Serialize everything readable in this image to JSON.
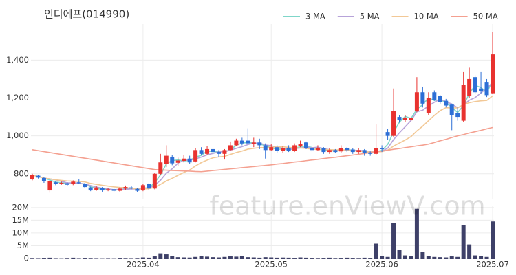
{
  "watermark": "feature.enViewV.com",
  "chart_data": [
    {
      "type": "candlestick",
      "title": "인디에프(014990)",
      "categories": [
        null,
        null,
        null,
        null,
        null,
        null,
        null,
        null,
        null,
        null,
        null,
        null,
        null,
        null,
        null,
        null,
        null,
        null,
        null,
        "2025.04",
        null,
        null,
        null,
        null,
        null,
        null,
        null,
        null,
        null,
        null,
        null,
        null,
        null,
        null,
        null,
        null,
        null,
        null,
        null,
        null,
        null,
        "2025.05",
        null,
        null,
        null,
        null,
        null,
        null,
        null,
        null,
        null,
        null,
        null,
        null,
        null,
        null,
        null,
        null,
        null,
        null,
        "2025.06",
        null,
        null,
        null,
        null,
        null,
        null,
        null,
        null,
        null,
        null,
        null,
        null,
        null,
        null,
        null,
        null,
        null,
        null,
        "2025.07"
      ],
      "open": [
        770,
        790,
        778,
        712,
        755,
        745,
        750,
        745,
        755,
        748,
        728,
        715,
        725,
        712,
        718,
        710,
        722,
        728,
        720,
        712,
        745,
        722,
        800,
        850,
        890,
        858,
        868,
        880,
        865,
        925,
        905,
        930,
        915,
        905,
        925,
        950,
        975,
        975,
        958,
        965,
        950,
        925,
        940,
        920,
        935,
        920,
        948,
        965,
        935,
        925,
        935,
        915,
        925,
        918,
        935,
        928,
        915,
        925,
        912,
        905,
        935,
        1020,
        1000,
        1100,
        1085,
        1082,
        1130,
        1230,
        1120,
        1230,
        1210,
        1185,
        1165,
        1120,
        1080,
        1210,
        1310,
        1250,
        1285,
        1225
      ],
      "high": [
        800,
        795,
        782,
        765,
        760,
        758,
        755,
        765,
        770,
        752,
        732,
        735,
        730,
        725,
        722,
        728,
        738,
        735,
        725,
        748,
        750,
        805,
        905,
        950,
        900,
        885,
        900,
        895,
        935,
        940,
        945,
        940,
        925,
        930,
        970,
        985,
        990,
        1040,
        990,
        985,
        960,
        955,
        950,
        945,
        950,
        960,
        975,
        970,
        945,
        950,
        940,
        935,
        930,
        950,
        940,
        935,
        935,
        930,
        918,
        1060,
        950,
        1035,
        1250,
        1110,
        1110,
        1100,
        1310,
        1260,
        1230,
        1240,
        1215,
        1195,
        1170,
        1150,
        1340,
        1360,
        1320,
        1340,
        1300,
        1550
      ],
      "low": [
        765,
        775,
        752,
        700,
        740,
        742,
        738,
        740,
        745,
        725,
        708,
        710,
        705,
        708,
        705,
        706,
        715,
        718,
        705,
        708,
        715,
        718,
        795,
        835,
        845,
        840,
        860,
        850,
        860,
        900,
        900,
        895,
        890,
        875,
        920,
        945,
        950,
        955,
        940,
        930,
        880,
        920,
        910,
        910,
        915,
        915,
        940,
        930,
        915,
        920,
        905,
        905,
        910,
        912,
        915,
        905,
        905,
        895,
        895,
        900,
        915,
        980,
        995,
        1070,
        1075,
        1075,
        1125,
        1150,
        1110,
        1185,
        1170,
        1150,
        1030,
        1080,
        1075,
        1200,
        1220,
        1225,
        1205,
        1220
      ],
      "close": [
        792,
        780,
        760,
        760,
        748,
        752,
        742,
        758,
        750,
        730,
        712,
        728,
        712,
        718,
        710,
        722,
        730,
        722,
        710,
        740,
        722,
        800,
        860,
        895,
        855,
        870,
        880,
        860,
        925,
        905,
        930,
        915,
        905,
        925,
        950,
        975,
        960,
        960,
        965,
        950,
        925,
        940,
        920,
        935,
        920,
        950,
        955,
        935,
        925,
        935,
        915,
        925,
        915,
        935,
        925,
        915,
        925,
        910,
        905,
        935,
        930,
        1000,
        1130,
        1085,
        1095,
        1095,
        1230,
        1170,
        1200,
        1190,
        1180,
        1160,
        1110,
        1100,
        1270,
        1300,
        1230,
        1235,
        1215,
        1430
      ],
      "up_color": "#e8322f",
      "down_color": "#2d6fd6",
      "series": [
        {
          "name": "3 MA",
          "color": "#7fd6c9",
          "values": [
            792,
            786,
            777,
            767,
            756,
            753,
            747,
            751,
            750,
            746,
            731,
            723,
            717,
            719,
            713,
            717,
            721,
            725,
            721,
            724,
            724,
            754,
            794,
            852,
            870,
            873,
            868,
            870,
            888,
            897,
            920,
            917,
            917,
            915,
            927,
            950,
            962,
            965,
            962,
            958,
            947,
            938,
            928,
            932,
            925,
            935,
            942,
            947,
            938,
            932,
            925,
            925,
            918,
            925,
            925,
            925,
            922,
            917,
            913,
            917,
            923,
            955,
            1020,
            1072,
            1103,
            1092,
            1140,
            1165,
            1200,
            1187,
            1190,
            1177,
            1150,
            1123,
            1160,
            1223,
            1267,
            1255,
            1227,
            1293
          ]
        },
        {
          "name": "5 MA",
          "color": "#b7a3d9",
          "values": [
            792,
            786,
            777,
            773,
            768,
            760,
            752,
            752,
            750,
            746,
            738,
            730,
            724,
            720,
            716,
            718,
            718,
            720,
            719,
            725,
            725,
            739,
            766,
            803,
            826,
            856,
            872,
            872,
            878,
            888,
            900,
            907,
            916,
            916,
            925,
            934,
            943,
            954,
            962,
            962,
            952,
            948,
            940,
            934,
            928,
            933,
            936,
            941,
            937,
            940,
            933,
            927,
            923,
            925,
            923,
            923,
            923,
            922,
            916,
            918,
            919,
            935,
            980,
            1016,
            1048,
            1081,
            1127,
            1135,
            1158,
            1177,
            1194,
            1180,
            1168,
            1148,
            1164,
            1188,
            1202,
            1227,
            1250,
            1282
          ]
        },
        {
          "name": "10 MA",
          "color": "#f2c896",
          "values": [
            792,
            786,
            777,
            773,
            768,
            765,
            762,
            761,
            760,
            757,
            749,
            744,
            739,
            735,
            731,
            728,
            727,
            723,
            719,
            720,
            721,
            729,
            744,
            762,
            776,
            792,
            807,
            820,
            841,
            859,
            872,
            884,
            889,
            892,
            902,
            912,
            920,
            930,
            934,
            938,
            938,
            940,
            941,
            942,
            939,
            937,
            936,
            934,
            930,
            928,
            928,
            927,
            926,
            926,
            926,
            922,
            919,
            917,
            915,
            915,
            917,
            925,
            946,
            962,
            978,
            996,
            1026,
            1051,
            1080,
            1108,
            1133,
            1149,
            1147,
            1148,
            1165,
            1175,
            1181,
            1185,
            1187,
            1211
          ]
        },
        {
          "name": "50 MA",
          "color": "#f4a090",
          "values": [
            927,
            922,
            917,
            912,
            907,
            902,
            897,
            892,
            887,
            882,
            877,
            872,
            867,
            862,
            857,
            852,
            847,
            842,
            837,
            832,
            827,
            822,
            820,
            819,
            817,
            816,
            815,
            814,
            812,
            811,
            814,
            817,
            820,
            823,
            826,
            829,
            832,
            835,
            838,
            841,
            844,
            847,
            851,
            854,
            858,
            862,
            865,
            869,
            873,
            876,
            880,
            884,
            887,
            891,
            895,
            899,
            903,
            907,
            912,
            916,
            920,
            924,
            929,
            933,
            938,
            942,
            947,
            951,
            956,
            965,
            974,
            982,
            991,
            1000,
            1007,
            1015,
            1022,
            1029,
            1037,
            1044
          ]
        }
      ],
      "ylim": [
        665,
        1590
      ],
      "yticks": [
        800,
        {
          "value": 1000,
          "label": "1,000"
        },
        {
          "value": 1200,
          "label": "1,200"
        },
        {
          "value": 1400,
          "label": "1,400"
        }
      ],
      "grid": true,
      "legend": "top-right"
    },
    {
      "type": "bar",
      "color": "#3e4068",
      "values": [
        200000,
        150000,
        250000,
        300000,
        150000,
        100000,
        200000,
        300000,
        150000,
        250000,
        200000,
        150000,
        100000,
        150000,
        100000,
        250000,
        200000,
        150000,
        200000,
        400000,
        300000,
        800000,
        2000000,
        1600000,
        900000,
        500000,
        400000,
        350000,
        600000,
        900000,
        700000,
        500000,
        400000,
        600000,
        800000,
        700000,
        900000,
        500000,
        400000,
        300000,
        500000,
        400000,
        300000,
        350000,
        300000,
        250000,
        400000,
        300000,
        250000,
        200000,
        250000,
        300000,
        200000,
        250000,
        300000,
        250000,
        200000,
        300000,
        250000,
        5800000,
        900000,
        600000,
        14000000,
        3500000,
        1200000,
        800000,
        19500000,
        2500000,
        1000000,
        600000,
        500000,
        400000,
        800000,
        600000,
        13000000,
        5500000,
        1200000,
        900000,
        600000,
        14500000
      ],
      "ylim": [
        0,
        20500000
      ],
      "yticks": [
        0,
        {
          "value": 5000000,
          "label": "5M"
        },
        {
          "value": 10000000,
          "label": "10M"
        },
        {
          "value": 15000000,
          "label": "15M"
        },
        {
          "value": 20000000,
          "label": "20M"
        }
      ],
      "grid": true
    }
  ]
}
